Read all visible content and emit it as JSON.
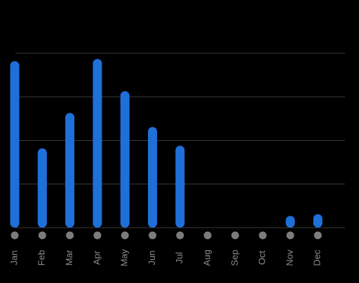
{
  "chart_data": {
    "type": "bar",
    "categories": [
      "Jan",
      "Feb",
      "Mar",
      "Apr",
      "May",
      "Jun",
      "Jul",
      "Aug",
      "Sep",
      "Oct",
      "Nov",
      "Dec"
    ],
    "values": [
      3.82,
      1.82,
      2.63,
      3.87,
      3.13,
      2.31,
      1.88,
      0,
      0,
      0,
      0.27,
      0.31
    ],
    "color": "#1f6fd8",
    "ylim": [
      0,
      4
    ],
    "yticks": [
      0,
      1,
      2,
      3,
      4
    ],
    "grid": true
  }
}
